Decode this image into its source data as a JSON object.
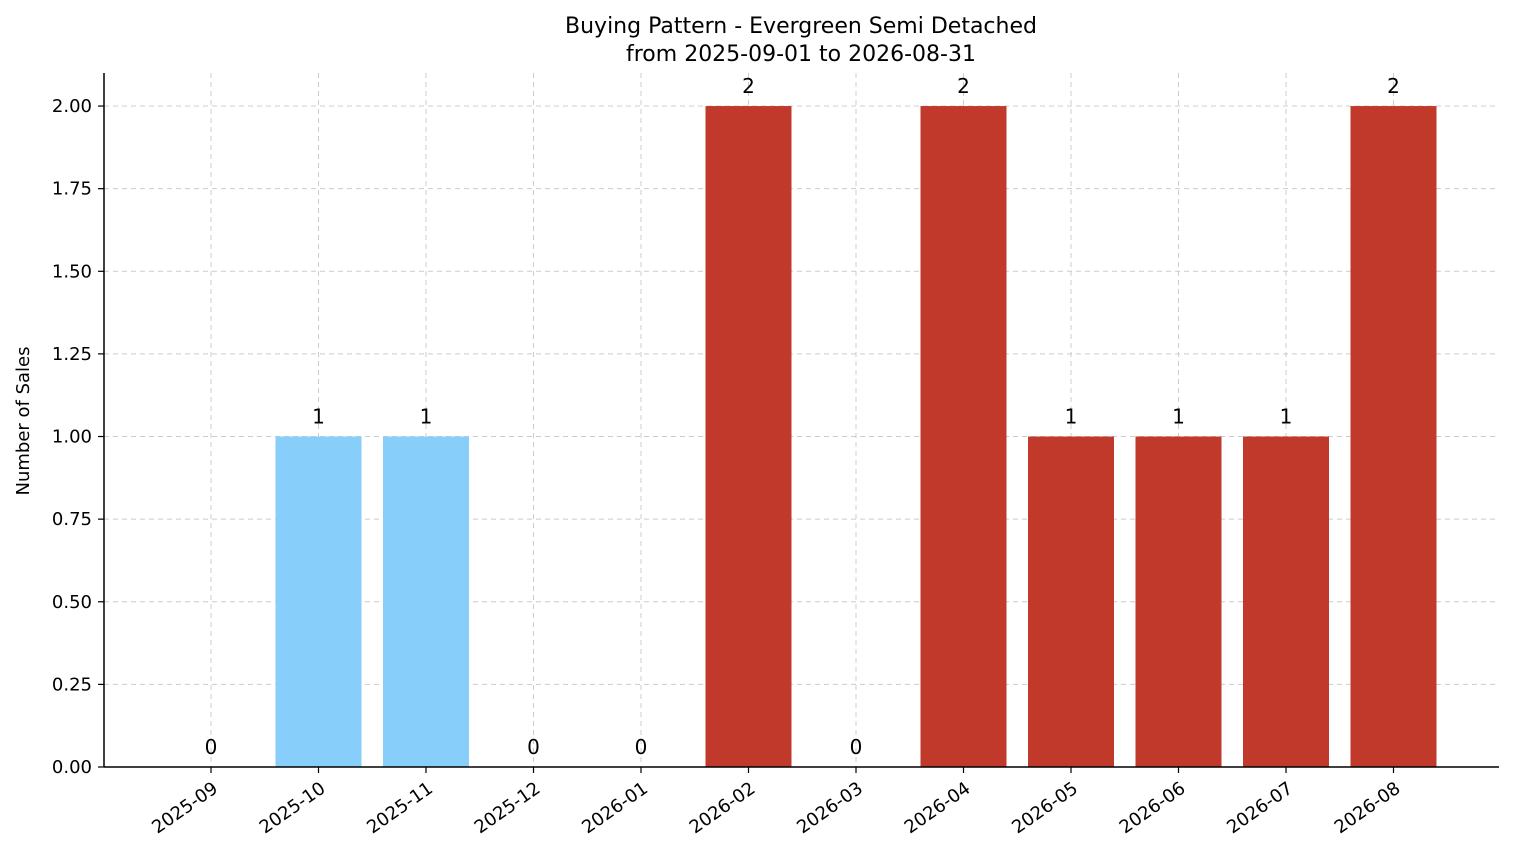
{
  "chart_data": {
    "type": "bar",
    "title_line1": "Buying Pattern - Evergreen Semi Detached",
    "title_line2": "from 2025-09-01 to 2026-08-31",
    "xlabel": "",
    "ylabel": "Number of Sales",
    "ylim": [
      0,
      2.1
    ],
    "yticks": [
      "0.00",
      "0.25",
      "0.50",
      "0.75",
      "1.00",
      "1.25",
      "1.50",
      "1.75",
      "2.00"
    ],
    "categories": [
      "2025-09",
      "2025-10",
      "2025-11",
      "2025-12",
      "2026-01",
      "2026-02",
      "2026-03",
      "2026-04",
      "2026-05",
      "2026-06",
      "2026-07",
      "2026-08"
    ],
    "values": [
      0,
      1,
      1,
      0,
      0,
      2,
      0,
      2,
      1,
      1,
      1,
      2
    ],
    "data_labels": [
      "0",
      "1",
      "1",
      "0",
      "0",
      "2",
      "0",
      "2",
      "1",
      "1",
      "1",
      "2"
    ],
    "bar_colors": [
      "#87CEFA",
      "#87CEFA",
      "#87CEFA",
      "#87CEFA",
      "#87CEFA",
      "#C0392B",
      "#C0392B",
      "#C0392B",
      "#C0392B",
      "#C0392B",
      "#C0392B",
      "#C0392B"
    ],
    "grid": true,
    "legend": "none"
  }
}
